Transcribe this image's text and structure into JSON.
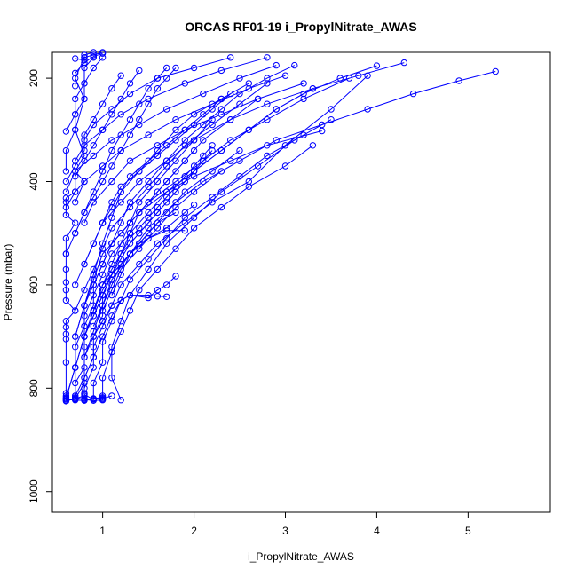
{
  "chart_data": {
    "type": "line",
    "title": "ORCAS RF01-19 i_PropylNitrate_AWAS",
    "xlabel": "i_PropylNitrate_AWAS",
    "ylabel": "Pressure (mbar)",
    "xlim": [
      0.45,
      5.9
    ],
    "ylim": [
      1040,
      150
    ],
    "y_reversed": true,
    "x_ticks": [
      1,
      2,
      3,
      4,
      5
    ],
    "y_ticks": [
      200,
      400,
      600,
      800,
      1000
    ],
    "grid": false,
    "legend": "none",
    "series_color": "#0000ff",
    "marker": "open-circle",
    "series": [
      {
        "x": [
          0.6,
          0.6,
          0.6,
          0.6,
          0.6,
          0.6,
          0.6,
          0.6,
          0.6,
          0.7,
          0.6,
          0.6,
          0.6,
          0.6,
          0.6,
          0.6,
          0.7,
          0.6,
          0.6,
          0.6,
          0.7,
          0.8,
          0.7,
          0.8,
          0.7,
          0.8,
          0.7,
          0.8,
          0.8,
          0.9
        ],
        "y": [
          824,
          820,
          815,
          810,
          750,
          705,
          695,
          682,
          670,
          650,
          630,
          610,
          595,
          570,
          540,
          510,
          480,
          465,
          440,
          432,
          420,
          400,
          380,
          350,
          300,
          240,
          200,
          160,
          155,
          150
        ]
      },
      {
        "x": [
          0.7,
          0.7,
          0.7,
          0.8,
          0.8,
          0.8,
          0.9,
          0.9,
          1.0,
          1.1,
          1.2,
          1.3,
          1.5,
          1.7,
          1.9,
          2.1,
          2.3,
          2.5,
          2.8,
          3.1
        ],
        "y": [
          822,
          815,
          790,
          760,
          720,
          680,
          640,
          600,
          560,
          520,
          480,
          440,
          400,
          360,
          320,
          290,
          260,
          230,
          200,
          175
        ]
      },
      {
        "x": [
          0.8,
          0.8,
          0.8,
          0.9,
          0.9,
          1.0,
          1.0,
          1.1,
          1.2,
          1.4,
          1.6,
          1.8,
          2.0,
          2.3,
          2.6,
          2.9,
          3.2,
          3.6,
          4.0
        ],
        "y": [
          820,
          810,
          780,
          740,
          700,
          660,
          620,
          580,
          540,
          500,
          460,
          420,
          380,
          340,
          300,
          260,
          230,
          200,
          176
        ]
      },
      {
        "x": [
          0.7,
          0.8,
          0.8,
          0.9,
          1.0,
          1.1,
          1.3,
          1.5,
          1.8,
          2.1,
          2.5,
          2.9,
          3.4,
          3.9,
          4.4,
          4.9,
          5.3
        ],
        "y": [
          821,
          790,
          740,
          690,
          640,
          590,
          540,
          490,
          440,
          400,
          360,
          320,
          290,
          260,
          230,
          205,
          187
        ]
      },
      {
        "x": [
          0.6,
          0.7,
          0.7,
          0.8,
          0.9,
          1.0,
          1.2,
          1.4,
          1.7,
          2.0,
          2.4,
          2.8,
          3.4
        ],
        "y": [
          818,
          760,
          700,
          640,
          590,
          540,
          500,
          460,
          420,
          390,
          360,
          330,
          302
        ]
      },
      {
        "x": [
          0.8,
          0.8,
          0.9,
          0.9,
          1.0,
          1.1,
          1.2,
          1.4,
          1.6,
          1.9,
          2.2,
          2.6,
          3.0,
          3.5,
          3.9
        ],
        "y": [
          823,
          800,
          760,
          720,
          680,
          640,
          600,
          560,
          520,
          480,
          440,
          400,
          330,
          260,
          195
        ]
      },
      {
        "x": [
          0.9,
          0.9,
          1.0,
          1.0,
          1.1,
          1.2,
          1.3,
          1.5,
          1.7,
          1.9,
          2.2,
          2.5,
          2.8,
          3.2
        ],
        "y": [
          822,
          790,
          750,
          710,
          670,
          630,
          590,
          550,
          510,
          470,
          430,
          390,
          350,
          310
        ]
      },
      {
        "x": [
          1.0,
          1.0,
          1.1,
          1.2,
          1.3,
          1.4,
          1.6,
          1.8,
          2.0,
          2.3,
          2.6,
          3.0,
          3.3
        ],
        "y": [
          822,
          780,
          730,
          690,
          650,
          610,
          570,
          530,
          490,
          450,
          410,
          370,
          330
        ]
      },
      {
        "x": [
          1.2,
          1.1,
          1.1,
          1.2,
          1.3,
          1.5,
          1.7,
          2.0,
          2.3,
          2.7,
          3.1,
          3.5
        ],
        "y": [
          823,
          780,
          720,
          670,
          620,
          570,
          520,
          470,
          420,
          370,
          320,
          280
        ]
      },
      {
        "x": [
          0.7,
          0.7,
          0.8,
          0.8,
          0.9,
          1.0,
          1.1,
          1.3,
          1.5,
          1.7,
          1.9,
          2.1,
          2.4,
          2.7
        ],
        "y": [
          760,
          720,
          680,
          640,
          600,
          560,
          520,
          480,
          440,
          400,
          360,
          320,
          280,
          240
        ]
      },
      {
        "x": [
          0.8,
          0.8,
          0.9,
          1.0,
          1.1,
          1.3,
          1.5,
          1.7,
          2.0,
          2.3,
          2.6,
          2.9,
          3.3
        ],
        "y": [
          700,
          660,
          620,
          580,
          540,
          500,
          460,
          420,
          380,
          340,
          300,
          260,
          220
        ]
      },
      {
        "x": [
          0.7,
          0.8,
          0.9,
          1.0,
          1.1,
          1.3,
          1.5,
          1.7,
          1.9,
          2.2,
          2.5,
          2.8
        ],
        "y": [
          650,
          610,
          570,
          530,
          490,
          450,
          410,
          370,
          330,
          290,
          250,
          210
        ]
      },
      {
        "x": [
          0.6,
          0.7,
          0.7,
          0.8,
          0.9,
          1.0,
          1.1,
          1.2,
          1.4,
          1.6,
          1.8,
          2.0,
          2.3,
          2.6
        ],
        "y": [
          820,
          760,
          700,
          640,
          580,
          520,
          470,
          420,
          380,
          340,
          300,
          270,
          240,
          210
        ]
      },
      {
        "x": [
          0.7,
          0.7,
          0.8,
          0.9,
          1.0,
          1.1,
          1.2,
          1.3,
          1.4,
          1.6,
          1.8,
          2.0,
          2.2
        ],
        "y": [
          820,
          760,
          700,
          650,
          600,
          560,
          520,
          480,
          440,
          400,
          360,
          320,
          280
        ]
      },
      {
        "x": [
          0.8,
          0.9,
          1.0,
          1.1,
          1.2,
          1.3,
          1.4,
          1.5,
          1.6,
          1.7,
          1.8,
          1.9,
          2.0
        ],
        "y": [
          700,
          660,
          620,
          580,
          540,
          500,
          460,
          440,
          420,
          400,
          380,
          360,
          340
        ]
      },
      {
        "x": [
          0.9,
          1.0,
          1.1,
          1.2,
          1.3,
          1.4,
          1.5,
          1.6,
          1.7,
          1.8,
          1.9,
          2.0,
          2.1,
          2.2
        ],
        "y": [
          650,
          610,
          580,
          550,
          520,
          500,
          480,
          460,
          440,
          420,
          400,
          380,
          360,
          340
        ]
      },
      {
        "x": [
          1.0,
          1.1,
          1.2,
          1.3,
          1.4,
          1.5,
          1.6,
          1.7,
          1.8,
          1.9,
          2.0,
          2.1,
          2.2
        ],
        "y": [
          600,
          570,
          540,
          510,
          490,
          470,
          450,
          430,
          410,
          390,
          370,
          350,
          330
        ]
      },
      {
        "x": [
          0.7,
          0.8,
          0.9,
          1.0,
          1.1,
          1.2,
          1.4,
          1.6,
          1.8,
          2.0,
          2.2,
          2.4
        ],
        "y": [
          600,
          560,
          520,
          480,
          440,
          410,
          380,
          350,
          320,
          290,
          260,
          230
        ]
      },
      {
        "x": [
          0.8,
          0.9,
          1.0,
          1.1,
          1.2,
          1.3,
          1.5,
          1.7,
          1.9,
          2.1,
          2.3
        ],
        "y": [
          560,
          520,
          480,
          450,
          420,
          390,
          360,
          330,
          300,
          270,
          240
        ]
      },
      {
        "x": [
          0.6,
          0.7,
          0.8,
          0.9,
          1.0,
          1.1,
          1.2,
          1.3,
          1.4,
          1.5,
          1.6,
          1.7,
          1.8
        ],
        "y": [
          540,
          500,
          460,
          430,
          400,
          370,
          340,
          310,
          280,
          250,
          220,
          200,
          180
        ]
      },
      {
        "x": [
          0.7,
          0.8,
          0.9,
          1.0,
          1.1,
          1.2,
          1.3,
          1.4,
          1.5,
          1.6,
          1.7
        ],
        "y": [
          500,
          460,
          420,
          380,
          340,
          310,
          280,
          250,
          220,
          200,
          180
        ]
      },
      {
        "x": [
          0.6,
          0.7,
          0.7,
          0.8,
          0.9,
          1.0,
          1.1,
          1.2,
          1.3,
          1.4
        ],
        "y": [
          450,
          420,
          390,
          360,
          330,
          300,
          270,
          240,
          210,
          185
        ]
      },
      {
        "x": [
          0.6,
          0.7,
          0.8,
          0.8,
          0.9,
          1.0,
          1.1,
          1.2
        ],
        "y": [
          400,
          370,
          340,
          310,
          280,
          250,
          220,
          195
        ]
      },
      {
        "x": [
          0.6,
          0.6,
          0.7,
          0.7,
          0.8,
          0.8,
          0.9,
          1.0
        ],
        "y": [
          380,
          340,
          300,
          270,
          240,
          210,
          180,
          160
        ]
      },
      {
        "x": [
          0.6,
          0.7,
          0.7,
          0.8,
          0.8,
          0.9
        ],
        "y": [
          303,
          270,
          240,
          210,
          180,
          160
        ]
      },
      {
        "x": [
          0.7,
          0.7,
          0.8,
          0.8,
          0.9,
          1.0
        ],
        "y": [
          215,
          190,
          170,
          160,
          155,
          150
        ]
      },
      {
        "x": [
          0.7,
          0.8,
          0.8,
          0.9,
          1.0
        ],
        "y": [
          162,
          165,
          170,
          158,
          152
        ]
      },
      {
        "x": [
          0.7,
          0.8,
          0.9,
          1.0,
          1.1,
          1.2,
          1.3,
          1.5,
          1.6,
          1.7,
          1.8
        ],
        "y": [
          815,
          780,
          740,
          700,
          660,
          630,
          620,
          625,
          610,
          600,
          583
        ]
      },
      {
        "x": [
          0.8,
          0.9,
          1.0,
          1.1,
          1.3,
          1.5,
          1.6,
          1.7
        ],
        "y": [
          740,
          700,
          670,
          640,
          620,
          620,
          622,
          623
        ]
      },
      {
        "x": [
          0.7,
          0.8,
          0.9,
          1.0,
          1.2,
          1.4,
          1.7,
          1.9,
          2.0
        ],
        "y": [
          760,
          700,
          650,
          600,
          560,
          520,
          490,
          460,
          445
        ]
      },
      {
        "x": [
          0.8,
          0.9,
          1.0,
          1.1,
          1.3,
          1.5,
          1.7,
          1.9
        ],
        "y": [
          700,
          660,
          620,
          580,
          540,
          510,
          495,
          495
        ]
      },
      {
        "x": [
          0.9,
          1.0,
          1.1,
          1.2,
          1.4,
          1.6,
          1.8
        ],
        "y": [
          680,
          640,
          600,
          560,
          520,
          480,
          460
        ]
      },
      {
        "x": [
          1.0,
          1.1,
          1.2,
          1.4,
          1.6,
          1.8,
          2.0,
          2.3
        ],
        "y": [
          650,
          610,
          570,
          530,
          490,
          450,
          420,
          380
        ]
      },
      {
        "x": [
          1.1,
          1.2,
          1.3,
          1.5,
          1.7,
          1.9,
          2.2,
          2.5
        ],
        "y": [
          620,
          580,
          540,
          500,
          460,
          420,
          380,
          340
        ]
      },
      {
        "x": [
          1.0,
          1.1,
          1.3,
          1.5,
          1.8,
          2.1,
          2.4,
          2.8,
          3.2,
          3.7
        ],
        "y": [
          560,
          520,
          480,
          440,
          400,
          360,
          320,
          280,
          240,
          200
        ]
      },
      {
        "x": [
          0.9,
          1.0,
          1.2,
          1.4,
          1.7,
          2.0,
          2.4,
          2.8,
          3.3,
          3.8,
          4.3
        ],
        "y": [
          520,
          480,
          440,
          400,
          360,
          320,
          280,
          250,
          220,
          195,
          170
        ]
      },
      {
        "x": [
          0.8,
          0.9,
          1.1,
          1.3,
          1.6,
          1.9,
          2.3,
          2.7,
          3.2
        ],
        "y": [
          480,
          440,
          400,
          360,
          330,
          300,
          270,
          240,
          210
        ]
      },
      {
        "x": [
          0.7,
          0.8,
          1.0,
          1.2,
          1.5,
          1.8,
          2.2,
          2.6,
          3.0
        ],
        "y": [
          440,
          400,
          370,
          340,
          310,
          280,
          250,
          220,
          195
        ]
      },
      {
        "x": [
          0.6,
          0.7,
          0.9,
          1.1,
          1.4,
          1.7,
          2.1,
          2.5,
          2.9
        ],
        "y": [
          420,
          380,
          350,
          320,
          290,
          260,
          230,
          200,
          175
        ]
      },
      {
        "x": [
          0.7,
          0.8,
          1.0,
          1.2,
          1.5,
          1.9,
          2.3,
          2.8
        ],
        "y": [
          360,
          330,
          300,
          270,
          240,
          210,
          185,
          160
        ]
      },
      {
        "x": [
          0.8,
          0.9,
          1.1,
          1.3,
          1.6,
          2.0,
          2.4
        ],
        "y": [
          320,
          290,
          260,
          230,
          200,
          180,
          160
        ]
      },
      {
        "x": [
          0.6,
          0.7,
          0.8,
          0.8,
          0.9,
          0.9,
          1.0
        ],
        "y": [
          825,
          820,
          815,
          812,
          822,
          820,
          818
        ]
      },
      {
        "x": [
          0.6,
          0.7,
          0.8,
          0.9,
          1.0,
          1.1
        ],
        "y": [
          822,
          823,
          824,
          821,
          820,
          815
        ]
      },
      {
        "x": [
          0.7,
          0.8,
          0.9,
          1.0,
          1.0
        ],
        "y": [
          818,
          822,
          824,
          823,
          815
        ]
      }
    ]
  }
}
